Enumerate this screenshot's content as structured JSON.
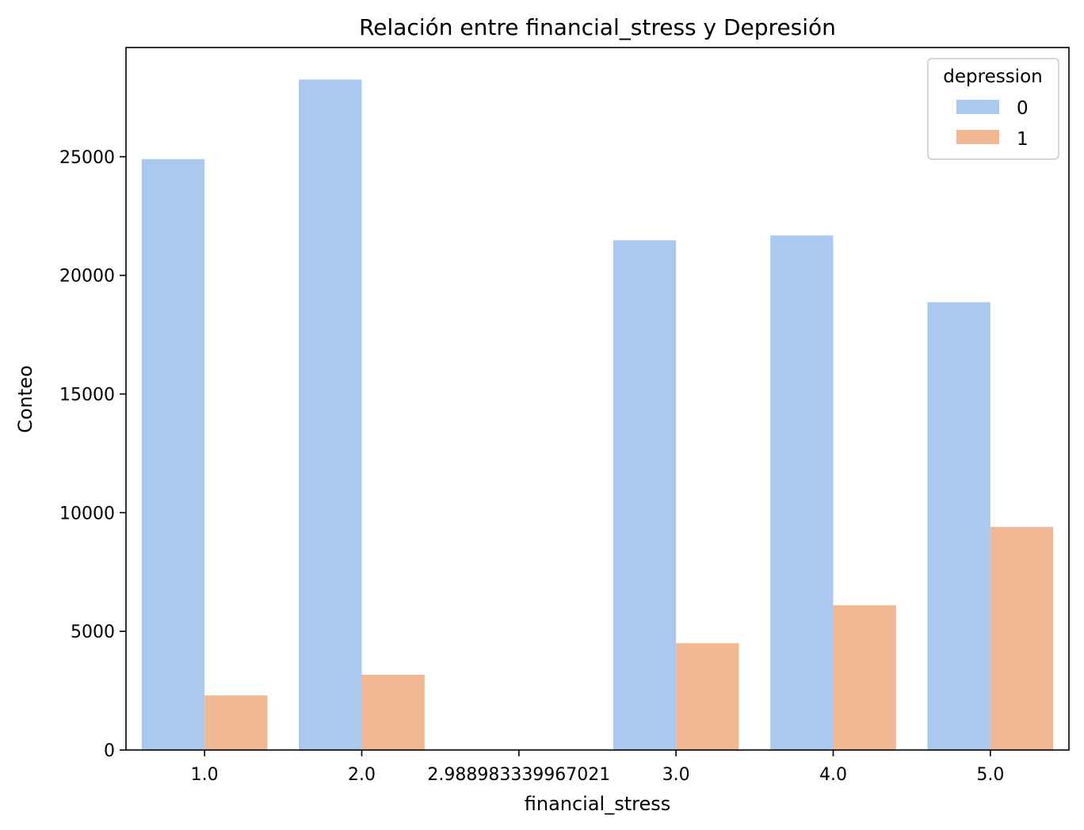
{
  "chart_data": {
    "type": "bar",
    "title": "Relación entre financial_stress y Depresión",
    "xlabel": "financial_stress",
    "ylabel": "Conteo",
    "categories": [
      "1.0",
      "2.0",
      "2.988983339967021",
      "3.0",
      "4.0",
      "5.0"
    ],
    "series": [
      {
        "name": "0",
        "color": "#abc9ee",
        "values": [
          24900,
          28250,
          0,
          21480,
          21680,
          18870
        ]
      },
      {
        "name": "1",
        "color": "#f0b892",
        "values": [
          2300,
          3170,
          0,
          4500,
          6100,
          9400
        ]
      }
    ],
    "ylim": [
      0,
      29600
    ],
    "yticks": [
      0,
      5000,
      10000,
      15000,
      20000,
      25000
    ],
    "legend": {
      "title": "depression",
      "position": "top-right",
      "labels": [
        "0",
        "1"
      ]
    },
    "grid": false
  }
}
